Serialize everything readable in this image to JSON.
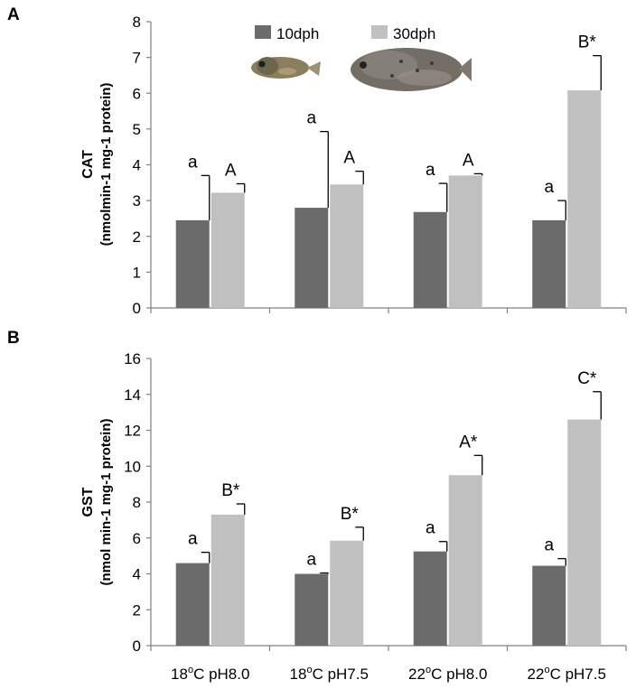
{
  "colors": {
    "series1": "#6b6b6b",
    "series2": "#c0c0c0",
    "axis": "#808080",
    "text": "#000000"
  },
  "panels": [
    {
      "letter": "A",
      "ylabel_main": "CAT",
      "ylabel_units": "(nmolmin-1 mg-1 protein)",
      "legend": [
        "10dph",
        "30dph"
      ],
      "fish_icons": [
        "larva-10dph-icon",
        "larva-30dph-icon"
      ]
    },
    {
      "letter": "B",
      "ylabel_main": "GST",
      "ylabel_units": "(nmol min-1 mg-1 protein)"
    }
  ],
  "chart_data": [
    {
      "type": "bar",
      "title": "",
      "xlabel": "",
      "ylabel": "CAT (nmolmin-1 mg-1 protein)",
      "ylim": [
        0,
        8
      ],
      "yticks": [
        0,
        1,
        2,
        3,
        4,
        5,
        6,
        7,
        8
      ],
      "categories": [
        "18oC pH8.0",
        "18oC pH7.5",
        "22oC pH8.0",
        "22oC pH7.5"
      ],
      "series": [
        {
          "name": "10dph",
          "values": [
            2.45,
            2.8,
            2.68,
            2.45
          ],
          "errors": [
            1.25,
            2.13,
            0.8,
            0.55
          ],
          "labels": [
            "a",
            "a",
            "a",
            "a"
          ]
        },
        {
          "name": "30dph",
          "values": [
            3.22,
            3.45,
            3.7,
            6.08
          ],
          "errors": [
            0.25,
            0.37,
            0.05,
            0.97
          ],
          "labels": [
            "A",
            "A",
            "A",
            "B*"
          ]
        }
      ]
    },
    {
      "type": "bar",
      "title": "",
      "xlabel": "",
      "ylabel": "GST (nmol min-1 mg-1 protein)",
      "ylim": [
        0,
        16
      ],
      "yticks": [
        0,
        2,
        4,
        6,
        8,
        10,
        12,
        14,
        16
      ],
      "categories": [
        "18oC pH8.0",
        "18oC pH7.5",
        "22oC pH8.0",
        "22oC pH7.5"
      ],
      "category_labels": [
        {
          "temp": "18",
          "deg": "o",
          "rest": "C pH8.0"
        },
        {
          "temp": "18",
          "deg": "o",
          "rest": "C pH7.5"
        },
        {
          "temp": "22",
          "deg": "o",
          "rest": "C pH8.0"
        },
        {
          "temp": "22",
          "deg": "o",
          "rest": "C pH7.5"
        }
      ],
      "series": [
        {
          "name": "10dph",
          "values": [
            4.6,
            4.0,
            5.25,
            4.45
          ],
          "errors": [
            0.6,
            0.05,
            0.55,
            0.4
          ],
          "labels": [
            "a",
            "a",
            "a",
            "a"
          ]
        },
        {
          "name": "30dph",
          "values": [
            7.3,
            5.85,
            9.5,
            12.6
          ],
          "errors": [
            0.6,
            0.75,
            1.1,
            1.55
          ],
          "labels": [
            "B*",
            "B*",
            "A*",
            "C*"
          ]
        }
      ]
    }
  ]
}
